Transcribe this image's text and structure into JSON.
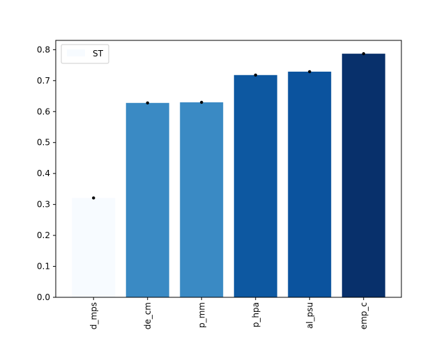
{
  "chart_data": {
    "type": "bar",
    "categories": [
      "d_mps",
      "de_cm",
      "p_mm",
      "p_hpa",
      "al_psu",
      "emp_c"
    ],
    "series": [
      {
        "name": "ST",
        "values": [
          0.321,
          0.628,
          0.63,
          0.718,
          0.729,
          0.787
        ],
        "errors": [
          0.003,
          0.004,
          0.003,
          0.003,
          0.003,
          0.002
        ],
        "colors": [
          "#f7fbff",
          "#3a8ac4",
          "#3a8ac4",
          "#0d58a1",
          "#0b539e",
          "#08306b"
        ]
      }
    ],
    "yticks": [
      "0.0",
      "0.1",
      "0.2",
      "0.3",
      "0.4",
      "0.5",
      "0.6",
      "0.7",
      "0.8"
    ],
    "ylim": [
      0,
      0.83
    ],
    "legend": {
      "position": "top-left",
      "label": "ST",
      "swatch_color": "#f7fbff"
    },
    "grid": false,
    "error_color": "#000000"
  }
}
